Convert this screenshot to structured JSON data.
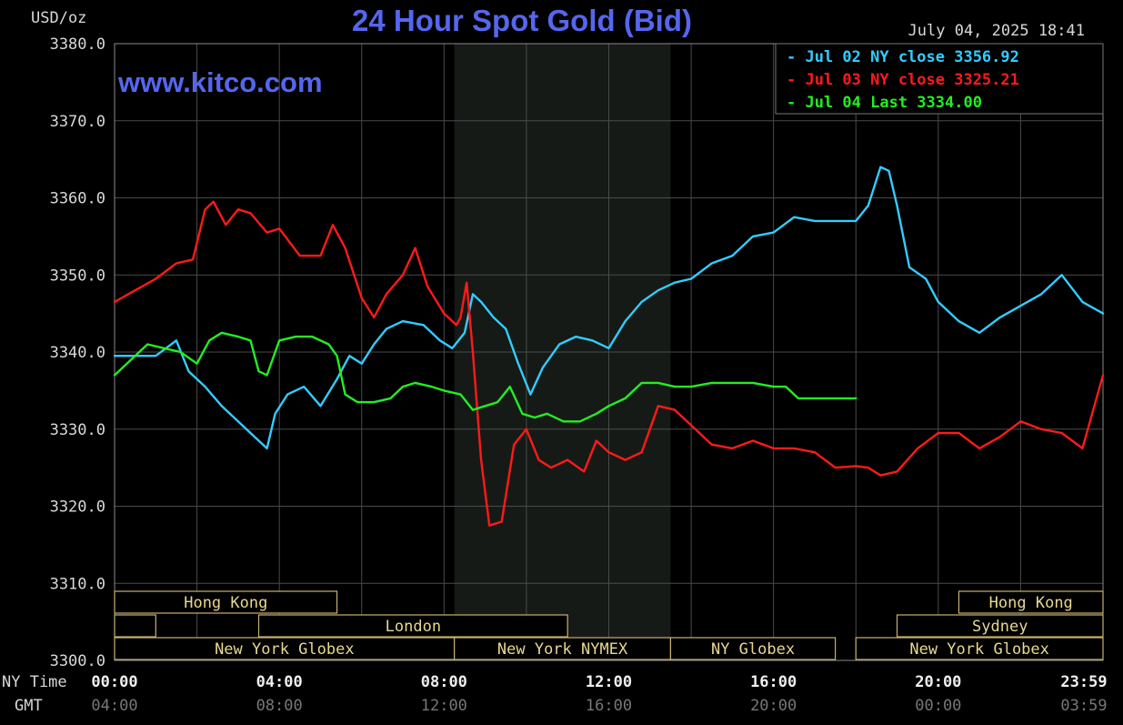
{
  "chart_data": {
    "type": "line",
    "title": "24 Hour Spot Gold (Bid)",
    "unit_label": "USD/oz",
    "watermark": "www.kitco.com",
    "timestamp": "July 04, 2025 18:41",
    "ylim": [
      3300,
      3380
    ],
    "y_ticks": [
      "3380.0",
      "3370.0",
      "3360.0",
      "3350.0",
      "3340.0",
      "3330.0",
      "3320.0",
      "3310.0",
      "3300.0"
    ],
    "xlim_hours": [
      0,
      24
    ],
    "x_tick_rows": {
      "ny_label": "NY Time",
      "gmt_label": "GMT",
      "ny": [
        "00:00",
        "04:00",
        "08:00",
        "12:00",
        "16:00",
        "20:00",
        "23:59"
      ],
      "gmt": [
        "04:00",
        "08:00",
        "12:00",
        "16:00",
        "20:00",
        "00:00",
        "03:59"
      ]
    },
    "grid": true,
    "legend_position": "top-right",
    "legend": [
      {
        "text": "Jul 02 NY close 3356.92",
        "color": "#33ccff"
      },
      {
        "text": "Jul 03 NY close 3325.21",
        "color": "#ff1a1a"
      },
      {
        "text": "Jul 04 Last 3334.00",
        "color": "#22ee22"
      }
    ],
    "sessions": [
      {
        "label": "Hong Kong",
        "row": 0,
        "start": 0,
        "end": 5.4
      },
      {
        "label": "",
        "row": 1,
        "start": 0,
        "end": 1.0
      },
      {
        "label": "London",
        "row": 1,
        "start": 3.5,
        "end": 11.0
      },
      {
        "label": "New York Globex",
        "row": 2,
        "start": 0,
        "end": 8.25
      },
      {
        "label": "New York NYMEX",
        "row": 2,
        "start": 8.25,
        "end": 13.5
      },
      {
        "label": "NY Globex",
        "row": 2,
        "start": 13.5,
        "end": 17.5
      },
      {
        "label": "Hong Kong",
        "row": 0,
        "start": 20.5,
        "end": 24
      },
      {
        "label": "Sydney",
        "row": 1,
        "start": 19.0,
        "end": 24
      },
      {
        "label": "New York Globex",
        "row": 2,
        "start": 18.0,
        "end": 24
      }
    ],
    "nymex_shade_hours": [
      8.25,
      13.5
    ],
    "series": [
      {
        "color": "#33ccff",
        "x": [
          0,
          0.5,
          1.0,
          1.5,
          1.8,
          2.2,
          2.6,
          3.0,
          3.4,
          3.7,
          3.9,
          4.2,
          4.6,
          5.0,
          5.4,
          5.7,
          6.0,
          6.3,
          6.6,
          7.0,
          7.5,
          7.9,
          8.2,
          8.5,
          8.7,
          8.9,
          9.2,
          9.5,
          9.8,
          10.1,
          10.4,
          10.8,
          11.2,
          11.6,
          12.0,
          12.4,
          12.8,
          13.2,
          13.6,
          14.0,
          14.5,
          15.0,
          15.5,
          16.0,
          16.5,
          17.0,
          17.5,
          18.0,
          18.3,
          18.6,
          18.8,
          19.0,
          19.3,
          19.7,
          20.0,
          20.5,
          21.0,
          21.5,
          22.0,
          22.5,
          23.0,
          23.5,
          24.0
        ],
        "values": [
          3339.5,
          3339.5,
          3339.5,
          3341.5,
          3337.5,
          3335.5,
          3333.0,
          3331.0,
          3329.0,
          3327.5,
          3332.0,
          3334.5,
          3335.5,
          3333.0,
          3336.5,
          3339.5,
          3338.5,
          3341.0,
          3343.0,
          3344.0,
          3343.5,
          3341.5,
          3340.5,
          3342.5,
          3347.5,
          3346.5,
          3344.5,
          3343.0,
          3338.5,
          3334.5,
          3338.0,
          3341.0,
          3342.0,
          3341.5,
          3340.5,
          3344.0,
          3346.5,
          3348.0,
          3349.0,
          3349.5,
          3351.5,
          3352.5,
          3355.0,
          3355.5,
          3357.5,
          3357.0,
          3357.0,
          3357.0,
          3359.0,
          3364.0,
          3363.5,
          3359.0,
          3351.0,
          3349.5,
          3346.5,
          3344.0,
          3342.5,
          3344.5,
          3346.0,
          3347.5,
          3350.0,
          3346.5,
          3345.0
        ]
      },
      {
        "color": "#ff1a1a",
        "x": [
          0,
          0.5,
          1.0,
          1.5,
          1.9,
          2.2,
          2.4,
          2.7,
          3.0,
          3.3,
          3.7,
          4.0,
          4.5,
          5.0,
          5.3,
          5.6,
          6.0,
          6.3,
          6.6,
          7.0,
          7.3,
          7.6,
          8.0,
          8.3,
          8.4,
          8.55,
          8.7,
          8.9,
          9.1,
          9.4,
          9.7,
          10.0,
          10.3,
          10.6,
          11.0,
          11.4,
          11.7,
          12.0,
          12.4,
          12.8,
          13.2,
          13.6,
          14.0,
          14.5,
          15.0,
          15.5,
          16.0,
          16.5,
          17.0,
          17.5,
          18.0,
          18.3,
          18.6,
          19.0,
          19.5,
          20.0,
          20.5,
          21.0,
          21.5,
          22.0,
          22.5,
          23.0,
          23.5,
          24.0
        ],
        "values": [
          3346.5,
          3348.0,
          3349.5,
          3351.5,
          3352.0,
          3358.5,
          3359.5,
          3356.5,
          3358.5,
          3358.0,
          3355.5,
          3356.0,
          3352.5,
          3352.5,
          3356.5,
          3353.5,
          3347.0,
          3344.5,
          3347.5,
          3350.0,
          3353.5,
          3348.5,
          3345.0,
          3343.5,
          3344.5,
          3349.0,
          3340.0,
          3326.0,
          3317.5,
          3318.0,
          3328.0,
          3330.0,
          3326.0,
          3325.0,
          3326.0,
          3324.5,
          3328.5,
          3327.0,
          3326.0,
          3327.0,
          3333.0,
          3332.5,
          3330.5,
          3328.0,
          3327.5,
          3328.5,
          3327.5,
          3327.5,
          3327.0,
          3325.0,
          3325.2,
          3325.0,
          3324.0,
          3324.5,
          3327.5,
          3329.5,
          3329.5,
          3327.5,
          3329.0,
          3331.0,
          3330.0,
          3329.5,
          3327.5,
          3337.0
        ]
      },
      {
        "color": "#22ee22",
        "x": [
          0,
          0.4,
          0.8,
          1.2,
          1.6,
          2.0,
          2.3,
          2.6,
          3.0,
          3.3,
          3.5,
          3.7,
          4.0,
          4.4,
          4.8,
          5.2,
          5.4,
          5.6,
          5.9,
          6.3,
          6.7,
          7.0,
          7.3,
          7.7,
          8.0,
          8.4,
          8.7,
          9.0,
          9.3,
          9.6,
          9.9,
          10.2,
          10.5,
          10.9,
          11.3,
          11.7,
          12.0,
          12.4,
          12.8,
          13.2,
          13.6,
          14.0,
          14.5,
          15.0,
          15.5,
          16.0,
          16.3,
          16.6,
          17.0,
          17.5,
          18.0
        ],
        "values": [
          3337.0,
          3339.0,
          3341.0,
          3340.5,
          3340.0,
          3338.5,
          3341.5,
          3342.5,
          3342.0,
          3341.5,
          3337.5,
          3337.0,
          3341.5,
          3342.0,
          3342.0,
          3341.0,
          3339.5,
          3334.5,
          3333.5,
          3333.5,
          3334.0,
          3335.5,
          3336.0,
          3335.5,
          3335.0,
          3334.5,
          3332.5,
          3333.0,
          3333.5,
          3335.5,
          3332.0,
          3331.5,
          3332.0,
          3331.0,
          3331.0,
          3332.0,
          3333.0,
          3334.0,
          3336.0,
          3336.0,
          3335.5,
          3335.5,
          3336.0,
          3336.0,
          3336.0,
          3335.5,
          3335.5,
          3334.0,
          3334.0,
          3334.0,
          3334.0
        ]
      }
    ]
  }
}
